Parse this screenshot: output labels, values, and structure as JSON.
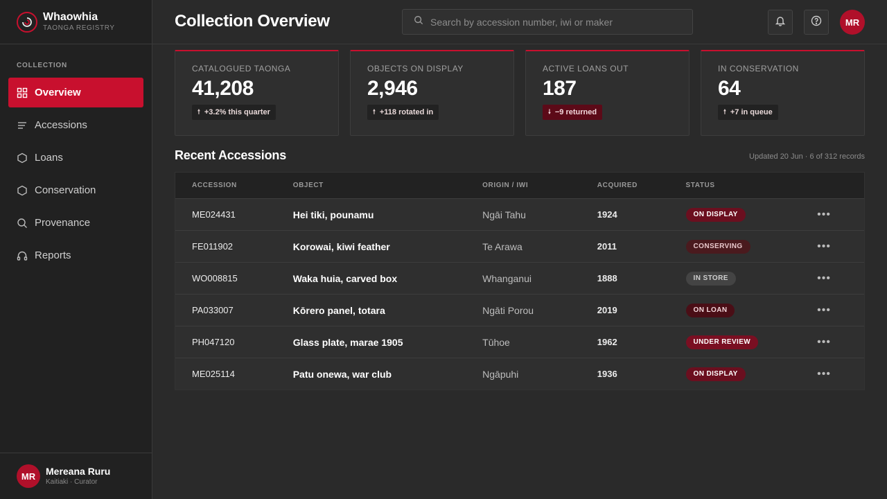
{
  "brand": {
    "name": "Whaowhia",
    "subtitle": "TAONGA REGISTRY"
  },
  "sidebar": {
    "section_label": "COLLECTION",
    "items": [
      {
        "label": "Overview",
        "icon": "grid-icon",
        "active": true
      },
      {
        "label": "Accessions",
        "icon": "list-icon",
        "active": false
      },
      {
        "label": "Loans",
        "icon": "hexagon-icon",
        "active": false
      },
      {
        "label": "Conservation",
        "icon": "hexagon-icon",
        "active": false
      },
      {
        "label": "Provenance",
        "icon": "search-icon",
        "active": false
      },
      {
        "label": "Reports",
        "icon": "headphones-icon",
        "active": false
      }
    ]
  },
  "user": {
    "initials": "MR",
    "name": "Mereana Ruru",
    "role": "Kaitiaki · Curator"
  },
  "header": {
    "title": "Collection Overview",
    "search_placeholder": "Search by accession number, iwi or maker",
    "avatar_initials": "MR"
  },
  "stats": [
    {
      "label": "CATALOGUED TAONGA",
      "value": "41,208",
      "badge": "+3.2% this quarter",
      "trend": "up"
    },
    {
      "label": "OBJECTS ON DISPLAY",
      "value": "2,946",
      "badge": "+118 rotated in",
      "trend": "up"
    },
    {
      "label": "ACTIVE LOANS OUT",
      "value": "187",
      "badge": "−9 returned",
      "trend": "down"
    },
    {
      "label": "IN CONSERVATION",
      "value": "64",
      "badge": "+7 in queue",
      "trend": "up"
    }
  ],
  "recent": {
    "title": "Recent Accessions",
    "meta": "Updated 20 Jun · 6 of 312 records",
    "columns": [
      "ACCESSION",
      "OBJECT",
      "ORIGIN / IWI",
      "ACQUIRED",
      "STATUS"
    ],
    "rows": [
      {
        "accession": "ME024431",
        "object": "Hei tiki, pounamu",
        "origin": "Ngāi Tahu",
        "acquired": "1924",
        "status": "ON DISPLAY",
        "status_kind": "display"
      },
      {
        "accession": "FE011902",
        "object": "Korowai, kiwi feather",
        "origin": "Te Arawa",
        "acquired": "2011",
        "status": "CONSERVING",
        "status_kind": "conserving"
      },
      {
        "accession": "WO008815",
        "object": "Waka huia, carved box",
        "origin": "Whanganui",
        "acquired": "1888",
        "status": "IN STORE",
        "status_kind": "store"
      },
      {
        "accession": "PA033007",
        "object": "Kōrero panel, totara",
        "origin": "Ngāti Porou",
        "acquired": "2019",
        "status": "ON LOAN",
        "status_kind": "loan"
      },
      {
        "accession": "PH047120",
        "object": "Glass plate, marae 1905",
        "origin": "Tūhoe",
        "acquired": "1962",
        "status": "UNDER REVIEW",
        "status_kind": "review"
      },
      {
        "accession": "ME025114",
        "object": "Patu onewa, war club",
        "origin": "Ngāpuhi",
        "acquired": "1936",
        "status": "ON DISPLAY",
        "status_kind": "display"
      }
    ],
    "row_action": "•••"
  },
  "colors": {
    "accent": "#c8102e",
    "background": "#2a2a2a",
    "sidebar": "#212121"
  }
}
